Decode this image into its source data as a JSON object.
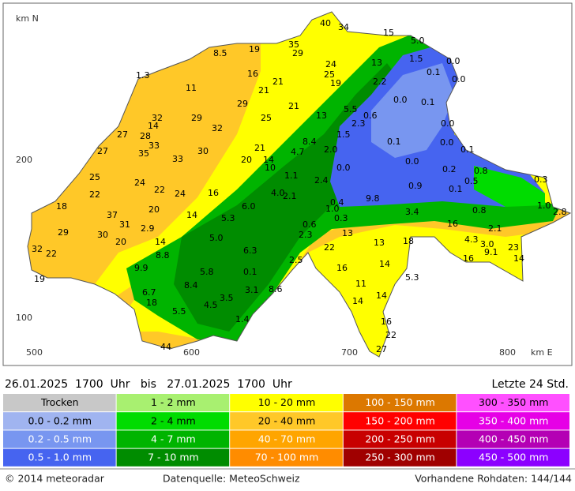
{
  "map_axes": {
    "north_label": "km N",
    "east_label": "km E",
    "y_labels": [
      "200",
      "100"
    ],
    "x_labels": [
      "500",
      "600",
      "700",
      "800"
    ]
  },
  "header": {
    "period": "26.01.2025  1700  Uhr   bis   27.01.2025  1700  Uhr",
    "duration": "Letzte 24 Std."
  },
  "station_values": [
    "40",
    "34",
    "15",
    "5.0",
    "35",
    "29",
    "19",
    "8.5",
    "13",
    "1.5",
    "0.0",
    "24",
    "25",
    "0.1",
    "0.0",
    "16",
    "21",
    "19",
    "2.2",
    "1.3",
    "11",
    "21",
    "0.0",
    "0.1",
    "29",
    "21",
    "5.5",
    "32",
    "13",
    "0.6",
    "29",
    "25",
    "2.3",
    "14",
    "0.0",
    "32",
    "27",
    "28",
    "1.5",
    "33",
    "8.4",
    "0.1",
    "0.0",
    "27",
    "35",
    "30",
    "21",
    "4.7",
    "2.0",
    "0.1",
    "33",
    "20",
    "14",
    "0.0",
    "10",
    "0.0",
    "0.2",
    "0.8",
    "25",
    "1.1",
    "2.4",
    "0.9",
    "0.5",
    "0.3",
    "24",
    "0.1",
    "22",
    "22",
    "24",
    "16",
    "4.0",
    "2.1",
    "0.4",
    "9.8",
    "18",
    "1.0",
    "6.0",
    "20",
    "0.3",
    "3.4",
    "1.0",
    "2.8",
    "37",
    "14",
    "5.3",
    "0.8",
    "31",
    "0.6",
    "16",
    "2.1",
    "29",
    "30",
    "2.9",
    "2.3",
    "13",
    "5.0",
    "20",
    "14",
    "13",
    "18",
    "4.3",
    "3.0",
    "32",
    "22",
    "22",
    "9.1",
    "23",
    "6.3",
    "8.8",
    "16",
    "14",
    "2.5",
    "14",
    "9.9",
    "5.8",
    "0.1",
    "16",
    "19",
    "5.3",
    "8.4",
    "11",
    "3.1",
    "8.6",
    "6.7",
    "14",
    "14",
    "18",
    "4.5",
    "3.5",
    "5.5",
    "1.4",
    "16",
    "22",
    "44",
    "27"
  ],
  "legend": [
    {
      "label": "Trocken",
      "color": "#c8c8c8"
    },
    {
      "label": "0.0 - 0.2 mm",
      "color": "#a0b4f0"
    },
    {
      "label": "0.2 - 0.5 mm",
      "color": "#7896f0"
    },
    {
      "label": "0.5 - 1.0 mm",
      "color": "#4664f0"
    },
    {
      "label": "1 - 2 mm",
      "color": "#a8f070"
    },
    {
      "label": "2 - 4 mm",
      "color": "#00dc00"
    },
    {
      "label": "4 - 7 mm",
      "color": "#00b400"
    },
    {
      "label": "7 - 10 mm",
      "color": "#008c00"
    },
    {
      "label": "10 - 20 mm",
      "color": "#ffff00"
    },
    {
      "label": "20 - 40 mm",
      "color": "#ffc828"
    },
    {
      "label": "40 - 70 mm",
      "color": "#ffa500"
    },
    {
      "label": "70 - 100 mm",
      "color": "#ff8c00"
    },
    {
      "label": "100 - 150 mm",
      "color": "#dc7800"
    },
    {
      "label": "150 - 200 mm",
      "color": "#ff0000"
    },
    {
      "label": "200 - 250 mm",
      "color": "#c80000"
    },
    {
      "label": "250 - 300 mm",
      "color": "#a00000"
    },
    {
      "label": "300 - 350 mm",
      "color": "#ff50ff"
    },
    {
      "label": "350 - 400 mm",
      "color": "#e600e6"
    },
    {
      "label": "400 - 450 mm",
      "color": "#b400b4"
    },
    {
      "label": "450 - 500 mm",
      "color": "#8c00ff"
    }
  ],
  "footer": {
    "copyright": "© 2014  meteoradar",
    "source": "Datenquelle: MeteoSchweiz",
    "raw_data": "Vorhandene Rohdaten: 144/144"
  }
}
